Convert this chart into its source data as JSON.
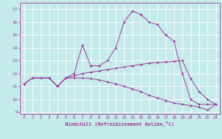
{
  "xlabel": "Windchill (Refroidissement éolien,°C)",
  "background_color": "#c5eaea",
  "grid_color": "#ffffff",
  "line_color": "#993399",
  "x_values": [
    0,
    1,
    2,
    3,
    4,
    5,
    6,
    7,
    8,
    9,
    10,
    11,
    12,
    13,
    14,
    15,
    16,
    17,
    18,
    19,
    20,
    21,
    22,
    23
  ],
  "curve_top": [
    11.2,
    11.65,
    11.65,
    11.65,
    11.0,
    11.65,
    12.0,
    14.2,
    12.6,
    12.6,
    13.0,
    14.0,
    16.0,
    16.85,
    16.6,
    16.0,
    15.8,
    15.0,
    14.5,
    12.0,
    10.0,
    9.6,
    9.6,
    9.6
  ],
  "curve_mid": [
    11.2,
    11.65,
    11.65,
    11.65,
    11.0,
    11.65,
    11.8,
    12.0,
    12.1,
    12.2,
    12.3,
    12.4,
    12.5,
    12.6,
    12.7,
    12.8,
    12.85,
    12.9,
    12.95,
    13.0,
    11.6,
    10.6,
    10.0,
    9.6
  ],
  "curve_bot": [
    11.2,
    11.65,
    11.65,
    11.65,
    11.0,
    11.65,
    11.65,
    11.65,
    11.6,
    11.5,
    11.35,
    11.2,
    11.0,
    10.8,
    10.6,
    10.3,
    10.1,
    9.9,
    9.7,
    9.6,
    9.5,
    9.4,
    9.15,
    9.6
  ],
  "xlim": [
    -0.5,
    23.5
  ],
  "ylim": [
    8.85,
    17.5
  ],
  "yticks": [
    9,
    10,
    11,
    12,
    13,
    14,
    15,
    16,
    17
  ],
  "xticks": [
    0,
    1,
    2,
    3,
    4,
    5,
    6,
    7,
    8,
    9,
    10,
    11,
    12,
    13,
    14,
    15,
    16,
    17,
    18,
    19,
    20,
    21,
    22,
    23
  ]
}
